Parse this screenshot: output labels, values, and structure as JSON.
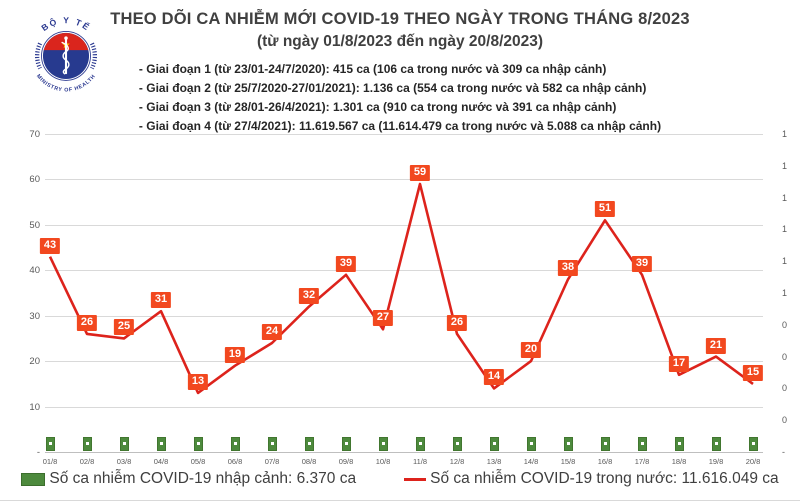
{
  "colors": {
    "line_red": "#dd231c",
    "label_box_orange": "#f2481f",
    "bar_green": "#4d8a3d",
    "grid_gray": "#d9d9d9",
    "axis_text_gray": "#595959",
    "title_gray": "#404040",
    "logo_blue": "#2b3990",
    "logo_red": "#da251d",
    "star_yellow": "#ffd400"
  },
  "logo": {
    "top_text": "BỘ Y TẾ",
    "bottom_text": "MINISTRY OF HEALTH"
  },
  "header": {
    "title": "THEO DÕI CA NHIỄM MỚI COVID-19 THEO NGÀY TRONG THÁNG 8/2023",
    "subtitle": "(từ ngày 01/8/2023 đến ngày 20/8/2023)",
    "phases": [
      "- Giai đoạn 1 (từ 23/01-24/7/2020): 415 ca (106 ca trong nước và 309 ca nhập cảnh)",
      "- Giai đoạn 2 (từ 25/7/2020-27/01/2021): 1.136 ca (554 ca trong nước và 582 ca nhập cảnh)",
      "- Giai đoạn 3 (từ 28/01-26/4/2021): 1.301 ca (910 ca trong nước và 391 ca nhập cảnh)",
      "- Giai đoạn 4 (từ 27/4/2021): 11.619.567 ca (11.614.479 ca trong nước và 5.088 ca nhập cảnh)"
    ]
  },
  "chart_data": {
    "type": "line",
    "title": "THEO DÕI CA NHIỄM MỚI COVID-19 THEO NGÀY TRONG THÁNG 8/2023",
    "categories": [
      "01/8",
      "02/8",
      "03/8",
      "04/8",
      "05/8",
      "06/8",
      "07/8",
      "08/8",
      "09/8",
      "10/8",
      "11/8",
      "12/8",
      "13/8",
      "14/8",
      "15/8",
      "16/8",
      "17/8",
      "18/8",
      "19/8",
      "20/8"
    ],
    "series": [
      {
        "name": "Số ca nhiễm COVID-19 trong nước",
        "type": "line",
        "color": "#dd231c",
        "label_box_color": "#f2481f",
        "values": [
          43,
          26,
          25,
          31,
          13,
          19,
          24,
          32,
          39,
          27,
          59,
          26,
          14,
          20,
          38,
          51,
          39,
          17,
          21,
          15
        ]
      },
      {
        "name": "Số ca nhiễm COVID-19 nhập cảnh",
        "type": "bar",
        "color": "#4d8a3d",
        "values_are_estimates": true,
        "values": [
          3,
          3,
          3,
          3,
          3,
          3,
          3,
          3,
          3,
          3,
          3,
          3,
          3,
          3,
          3,
          3,
          3,
          3,
          3,
          3
        ]
      }
    ],
    "axis_left": {
      "min": 0,
      "max": 70,
      "ticks": [
        "70",
        "60",
        "50",
        "40",
        "30",
        "20",
        "10",
        "-"
      ]
    },
    "axis_right": {
      "ticks": [
        "1",
        "1",
        "1",
        "1",
        "1",
        "1",
        "0",
        "0",
        "0",
        "0",
        "-"
      ]
    },
    "grid": true,
    "legend_position": "bottom"
  },
  "legend": {
    "items": [
      {
        "label": "Số ca nhiễm COVID-19 nhập cảnh: 6.370 ca",
        "swatch": "green-square",
        "color": "#4d8a3d"
      },
      {
        "label": "Số ca nhiễm COVID-19 trong nước: 11.616.049 ca",
        "swatch": "red-line",
        "color": "#dd231c"
      }
    ]
  }
}
